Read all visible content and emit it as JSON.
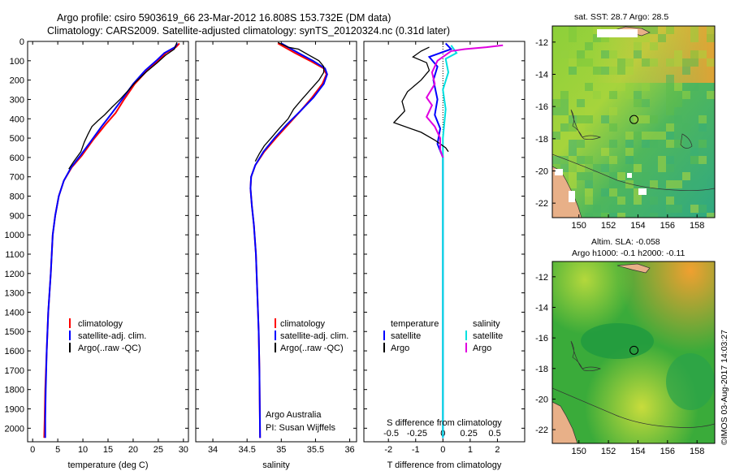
{
  "header": {
    "line1": "Argo profile: csiro 5903619_66 23-Mar-2012 16.808S 153.732E (DM data)",
    "line2": "Climatology: CARS2009. Satellite-adjusted climatology: synTS_20120324.nc (0.31d later)"
  },
  "colors": {
    "climatology": "#ff0000",
    "satellite": "#0000ff",
    "argo": "#000000",
    "sal_sat": "#00e0e0",
    "sal_argo": "#e000e0"
  },
  "chart_data": [
    {
      "type": "line",
      "name": "temperature",
      "xlabel": "temperature (deg C)",
      "ylabel": "",
      "xlim": [
        -1,
        31
      ],
      "ylim": [
        2070,
        0
      ],
      "xticks": [
        "0",
        "5",
        "10",
        "15",
        "20",
        "25",
        "30"
      ],
      "xtick_values": [
        0,
        5,
        10,
        15,
        20,
        25,
        30
      ],
      "yticks": [
        "0",
        "100",
        "200",
        "300",
        "400",
        "500",
        "600",
        "700",
        "800",
        "900",
        "1000",
        "1100",
        "1200",
        "1300",
        "1400",
        "1500",
        "1600",
        "1700",
        "1800",
        "1900",
        "2000"
      ],
      "legend": [
        "climatology",
        "satellite-adj. clim.",
        "Argo(..raw -QC)"
      ],
      "series": [
        {
          "name": "climatology",
          "color": "#ff0000",
          "points": [
            [
              29.2,
              10
            ],
            [
              28.5,
              30
            ],
            [
              26.5,
              60
            ],
            [
              25.0,
              100
            ],
            [
              22.8,
              150
            ],
            [
              20.3,
              220
            ],
            [
              18.2,
              300
            ],
            [
              16.5,
              370
            ],
            [
              14.5,
              430
            ],
            [
              12.0,
              510
            ],
            [
              9.8,
              590
            ],
            [
              7.8,
              650
            ],
            [
              6.2,
              720
            ],
            [
              5.2,
              800
            ],
            [
              4.5,
              900
            ],
            [
              4.0,
              1000
            ],
            [
              3.6,
              1200
            ],
            [
              3.1,
              1400
            ],
            [
              2.8,
              1600
            ],
            [
              2.5,
              1800
            ],
            [
              2.4,
              1950
            ],
            [
              2.3,
              2050
            ]
          ]
        },
        {
          "name": "satellite-adj. clim.",
          "color": "#0000ff",
          "points": [
            [
              28.8,
              10
            ],
            [
              28.3,
              30
            ],
            [
              26.2,
              60
            ],
            [
              24.6,
              100
            ],
            [
              22.4,
              150
            ],
            [
              20.0,
              220
            ],
            [
              17.8,
              300
            ],
            [
              15.8,
              370
            ],
            [
              13.7,
              440
            ],
            [
              11.5,
              520
            ],
            [
              9.5,
              590
            ],
            [
              7.7,
              650
            ],
            [
              6.2,
              720
            ],
            [
              5.2,
              800
            ],
            [
              4.5,
              900
            ],
            [
              4.0,
              1000
            ],
            [
              3.6,
              1200
            ],
            [
              3.1,
              1400
            ],
            [
              2.8,
              1600
            ],
            [
              2.6,
              1800
            ],
            [
              2.5,
              1950
            ],
            [
              2.5,
              2050
            ]
          ]
        },
        {
          "name": "Argo(..raw -QC)",
          "color": "#000000",
          "points": [
            [
              28.7,
              5
            ],
            [
              28.2,
              40
            ],
            [
              26.5,
              70
            ],
            [
              24.8,
              110
            ],
            [
              22.5,
              160
            ],
            [
              20.5,
              210
            ],
            [
              18.8,
              260
            ],
            [
              17.4,
              300
            ],
            [
              15.8,
              340
            ],
            [
              14.3,
              380
            ],
            [
              13.0,
              410
            ],
            [
              11.8,
              440
            ],
            [
              11.0,
              480
            ],
            [
              10.3,
              520
            ],
            [
              9.6,
              570
            ],
            [
              8.2,
              620
            ],
            [
              7.2,
              660
            ]
          ]
        }
      ]
    },
    {
      "type": "line",
      "name": "salinity",
      "xlabel": "salinity",
      "xlim": [
        33.75,
        36.1
      ],
      "ylim": [
        2070,
        0
      ],
      "xticks": [
        "34",
        "34.5",
        "35",
        "35.5",
        "36"
      ],
      "xtick_values": [
        34,
        34.5,
        35,
        35.5,
        36
      ],
      "legend": [
        "climatology",
        "satellite-adj. clim.",
        "Argo(..raw -QC)"
      ],
      "annotation1": "Argo Australia",
      "annotation2": "PI: Susan Wijffels",
      "series": [
        {
          "name": "climatology",
          "color": "#ff0000",
          "points": [
            [
              34.95,
              10
            ],
            [
              35.05,
              30
            ],
            [
              35.2,
              60
            ],
            [
              35.42,
              100
            ],
            [
              35.62,
              140
            ],
            [
              35.66,
              170
            ],
            [
              35.6,
              220
            ],
            [
              35.45,
              290
            ],
            [
              35.28,
              360
            ],
            [
              35.1,
              430
            ],
            [
              34.92,
              500
            ],
            [
              34.75,
              570
            ],
            [
              34.62,
              640
            ],
            [
              34.56,
              700
            ],
            [
              34.55,
              760
            ],
            [
              34.57,
              850
            ],
            [
              34.6,
              950
            ],
            [
              34.63,
              1100
            ],
            [
              34.65,
              1300
            ],
            [
              34.67,
              1500
            ],
            [
              34.68,
              1700
            ],
            [
              34.69,
              2050
            ]
          ]
        },
        {
          "name": "satellite-adj. clim.",
          "color": "#0000ff",
          "points": [
            [
              35.0,
              10
            ],
            [
              35.1,
              30
            ],
            [
              35.25,
              60
            ],
            [
              35.46,
              100
            ],
            [
              35.64,
              140
            ],
            [
              35.67,
              170
            ],
            [
              35.62,
              220
            ],
            [
              35.47,
              290
            ],
            [
              35.28,
              360
            ],
            [
              35.08,
              430
            ],
            [
              34.9,
              500
            ],
            [
              34.74,
              570
            ],
            [
              34.62,
              640
            ],
            [
              34.56,
              700
            ],
            [
              34.55,
              760
            ],
            [
              34.57,
              850
            ],
            [
              34.6,
              950
            ],
            [
              34.63,
              1100
            ],
            [
              34.65,
              1300
            ],
            [
              34.67,
              1500
            ],
            [
              34.68,
              1700
            ],
            [
              34.69,
              2050
            ]
          ]
        },
        {
          "name": "Argo(..raw -QC)",
          "color": "#000000",
          "points": [
            [
              34.95,
              5
            ],
            [
              35.1,
              30
            ],
            [
              35.25,
              40
            ],
            [
              35.4,
              70
            ],
            [
              35.55,
              100
            ],
            [
              35.62,
              130
            ],
            [
              35.62,
              160
            ],
            [
              35.55,
              200
            ],
            [
              35.4,
              260
            ],
            [
              35.3,
              300
            ],
            [
              35.18,
              350
            ],
            [
              35.1,
              400
            ],
            [
              34.97,
              450
            ],
            [
              34.85,
              500
            ],
            [
              34.75,
              540
            ],
            [
              34.68,
              580
            ],
            [
              34.62,
              620
            ]
          ]
        }
      ]
    },
    {
      "type": "line",
      "name": "difference",
      "xlabel": "T difference from climatology",
      "xlabel_top": "S difference from climatology",
      "xlim": [
        -2.9,
        3.0
      ],
      "ylim": [
        2070,
        0
      ],
      "xticks": [
        "-2",
        "-1",
        "0",
        "1",
        "2"
      ],
      "xtick_values": [
        -2,
        -1,
        0,
        1,
        2
      ],
      "sticks": [
        "-0.5",
        "-0.25",
        "0",
        "0.25",
        "0.5"
      ],
      "stick_values": [
        -1.9,
        -0.95,
        0,
        0.95,
        1.9
      ],
      "legend_temperature": "temperature",
      "legend_salinity": "salinity",
      "legend_satellite": "satellite",
      "legend_argo": "Argo",
      "legend_satellite_s": "satellite",
      "legend_argo_s": "Argo",
      "series": [
        {
          "name": "T satellite",
          "color": "#0000ff",
          "points": [
            [
              0.1,
              10
            ],
            [
              0.3,
              40
            ],
            [
              -0.5,
              80
            ],
            [
              -0.2,
              130
            ],
            [
              -0.35,
              200
            ],
            [
              -0.2,
              300
            ],
            [
              -0.3,
              380
            ],
            [
              -0.1,
              450
            ],
            [
              -0.2,
              530
            ],
            [
              0.0,
              600
            ],
            [
              0.0,
              800
            ],
            [
              0.0,
              1000
            ],
            [
              0.0,
              1500
            ],
            [
              0.0,
              2050
            ]
          ]
        },
        {
          "name": "S satellite",
          "color": "#00e0e0",
          "points": [
            [
              0.3,
              20
            ],
            [
              0.5,
              60
            ],
            [
              0.1,
              90
            ],
            [
              0.2,
              160
            ],
            [
              0.0,
              250
            ],
            [
              0.1,
              350
            ],
            [
              0.0,
              500
            ],
            [
              0.0,
              800
            ],
            [
              0.0,
              1200
            ],
            [
              0.0,
              2050
            ]
          ]
        },
        {
          "name": "T Argo",
          "color": "#000000",
          "points": [
            [
              -0.5,
              30
            ],
            [
              -0.8,
              50
            ],
            [
              -1.1,
              80
            ],
            [
              -0.6,
              110
            ],
            [
              -0.5,
              150
            ],
            [
              -0.8,
              200
            ],
            [
              -1.3,
              260
            ],
            [
              -1.5,
              310
            ],
            [
              -1.4,
              360
            ],
            [
              -1.8,
              420
            ],
            [
              -0.8,
              470
            ],
            [
              -0.3,
              510
            ],
            [
              0.1,
              550
            ],
            [
              0.2,
              570
            ]
          ]
        },
        {
          "name": "S Argo",
          "color": "#e000e0",
          "points": [
            [
              2.2,
              20
            ],
            [
              1.6,
              30
            ],
            [
              0.8,
              40
            ],
            [
              0.3,
              50
            ],
            [
              -0.2,
              100
            ],
            [
              -0.4,
              160
            ],
            [
              -0.3,
              220
            ],
            [
              -0.6,
              290
            ],
            [
              -0.4,
              330
            ],
            [
              -0.6,
              390
            ],
            [
              -0.3,
              440
            ],
            [
              -0.1,
              500
            ],
            [
              -0.1,
              560
            ],
            [
              0.0,
              600
            ]
          ]
        }
      ]
    },
    {
      "type": "heatmap",
      "name": "sst map",
      "title": "sat. SST: 28.7  Argo: 28.5",
      "xlim": [
        148.2,
        159.2
      ],
      "ylim": [
        -22.9,
        -11.0
      ],
      "xticks": [
        "150",
        "152",
        "154",
        "156",
        "158"
      ],
      "xtick_values": [
        150,
        152,
        154,
        156,
        158
      ],
      "yticks": [
        "-12",
        "-14",
        "-16",
        "-18",
        "-20",
        "-22"
      ],
      "ytick_values": [
        -12,
        -14,
        -16,
        -18,
        -20,
        -22
      ],
      "argo_position": [
        153.732,
        -16.808
      ]
    },
    {
      "type": "heatmap",
      "name": "sla map",
      "title1": "Altim. SLA: -0.058",
      "title2": "Argo h1000: -0.1 h2000: -0.11",
      "xlim": [
        148.2,
        159.2
      ],
      "ylim": [
        -22.9,
        -11.0
      ],
      "xticks": [
        "150",
        "152",
        "154",
        "156",
        "158"
      ],
      "xtick_values": [
        150,
        152,
        154,
        156,
        158
      ],
      "yticks": [
        "-12",
        "-14",
        "-16",
        "-18",
        "-20",
        "-22"
      ],
      "ytick_values": [
        -12,
        -14,
        -16,
        -18,
        -20,
        -22
      ],
      "argo_position": [
        153.732,
        -16.808
      ]
    }
  ],
  "footer": {
    "stamp": "©IMOS 03-Aug-2017 14:03:27"
  }
}
